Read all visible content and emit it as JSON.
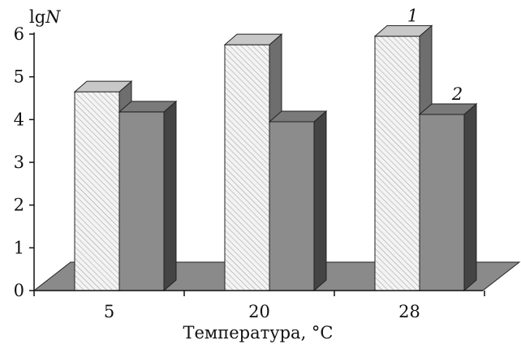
{
  "chart_data": {
    "type": "bar",
    "title": "",
    "xlabel": "Температура, °C",
    "ylabel_prefix": "lg",
    "ylabel_var": "N",
    "categories": [
      "5",
      "20",
      "28"
    ],
    "ylim": [
      0,
      6
    ],
    "yticks": [
      "0",
      "1",
      "2",
      "3",
      "4",
      "5",
      "6"
    ],
    "series": [
      {
        "name": "1",
        "values": [
          4.65,
          5.75,
          5.95
        ],
        "pattern": "hatched",
        "color": "#f2f2f2"
      },
      {
        "name": "2",
        "values": [
          4.18,
          3.95,
          4.12
        ],
        "color": "#8c8c8c"
      }
    ],
    "legend": "series labels placed above bars of the last category",
    "grid": false,
    "style": "3d"
  }
}
